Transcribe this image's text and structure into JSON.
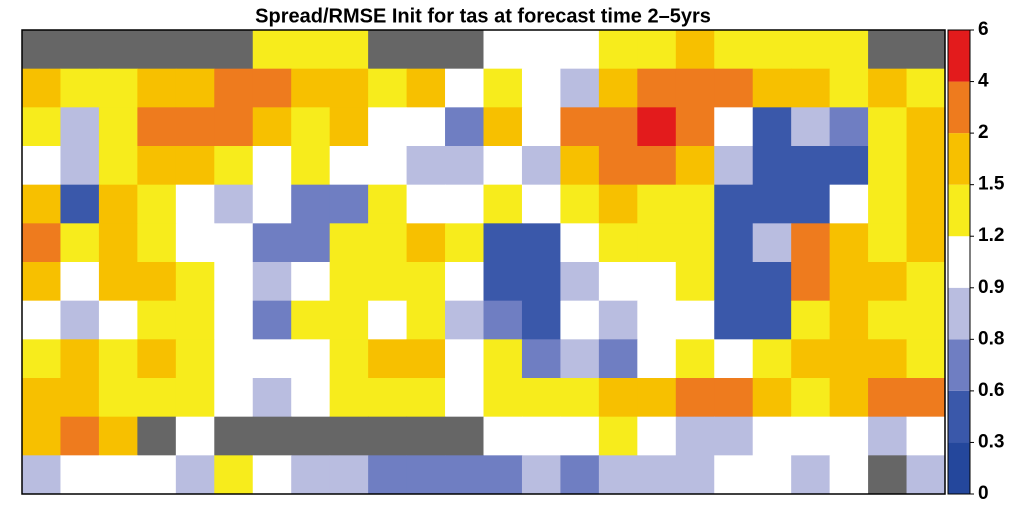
{
  "chart_data": {
    "type": "heatmap",
    "title": "Spread/RMSE Init for tas at forecast time 2–5yrs",
    "colorbar_ticks": [
      0,
      0.3,
      0.6,
      0.8,
      0.9,
      1.2,
      1.5,
      2,
      4,
      6
    ],
    "colors": [
      "#24479c",
      "#3a58aa",
      "#6f7ec2",
      "#b9bde0",
      "#ffffff",
      "#f7ec1c",
      "#f7c000",
      "#ee7b1e",
      "#e31b1c"
    ],
    "missing_color": "#666666",
    "values": [
      [
        null,
        null,
        null,
        null,
        null,
        null,
        1.3,
        1.2,
        1.3,
        null,
        null,
        null,
        1.0,
        1.0,
        1.0,
        1.3,
        1.3,
        1.5,
        1.3,
        1.3,
        1.2,
        1.3,
        null,
        null
      ],
      [
        1.5,
        1.3,
        1.3,
        1.7,
        1.7,
        2.5,
        2.5,
        1.7,
        1.7,
        1.3,
        1.7,
        1.0,
        1.2,
        1.0,
        0.85,
        1.7,
        2.5,
        2.5,
        2.5,
        1.7,
        1.7,
        1.3,
        1.5,
        1.3
      ],
      [
        1.3,
        0.85,
        1.3,
        2.5,
        2.5,
        2.5,
        1.7,
        1.3,
        1.7,
        1.0,
        1.0,
        0.7,
        1.7,
        1.0,
        2.5,
        3,
        4.5,
        2.5,
        1.0,
        0.5,
        0.85,
        0.7,
        1.3,
        1.5
      ],
      [
        1.0,
        0.85,
        1.3,
        1.7,
        1.7,
        1.3,
        1.0,
        1.3,
        1.0,
        1.0,
        0.85,
        0.85,
        1.0,
        0.85,
        1.7,
        2.5,
        2.5,
        1.7,
        0.85,
        0.5,
        0.5,
        0.5,
        1.3,
        1.5
      ],
      [
        1.7,
        0.5,
        1.5,
        1.3,
        1.0,
        0.85,
        1.0,
        0.7,
        0.7,
        1.3,
        1.0,
        1.0,
        1.3,
        1.0,
        1.3,
        1.7,
        1.3,
        1.3,
        0.5,
        0.5,
        0.5,
        1.0,
        1.3,
        1.7
      ],
      [
        2.5,
        1.3,
        1.7,
        1.3,
        1.0,
        1.0,
        0.7,
        0.7,
        1.3,
        1.3,
        1.7,
        1.3,
        0.5,
        0.5,
        1.0,
        1.3,
        1.3,
        1.3,
        0.5,
        0.85,
        2.5,
        1.7,
        1.3,
        1.7
      ],
      [
        1.7,
        1.0,
        1.5,
        1.7,
        1.3,
        1.0,
        0.85,
        1.0,
        1.3,
        1.3,
        1.3,
        1.0,
        0.5,
        0.5,
        0.85,
        1.0,
        1.0,
        1.3,
        0.5,
        0.5,
        2.5,
        1.7,
        1.7,
        1.3
      ],
      [
        1.0,
        0.85,
        1.0,
        1.3,
        1.3,
        1.0,
        0.7,
        1.3,
        1.3,
        1.0,
        1.3,
        0.85,
        0.7,
        0.5,
        1.0,
        0.85,
        1.0,
        1.0,
        0.5,
        0.5,
        1.3,
        1.7,
        1.3,
        1.3
      ],
      [
        1.3,
        1.7,
        1.3,
        1.7,
        1.3,
        1.0,
        1.0,
        1.0,
        1.3,
        1.7,
        1.5,
        1.0,
        1.3,
        0.7,
        0.85,
        0.7,
        1.0,
        1.3,
        1.0,
        1.3,
        1.7,
        1.5,
        1.7,
        1.3
      ],
      [
        1.7,
        1.7,
        1.3,
        1.3,
        1.3,
        1.0,
        0.85,
        1.0,
        1.3,
        1.3,
        1.3,
        1.0,
        1.3,
        1.3,
        1.3,
        1.7,
        1.7,
        2.5,
        2.5,
        1.7,
        1.3,
        1.7,
        2.5,
        2.5
      ],
      [
        1.5,
        2.5,
        1.7,
        null,
        1.0,
        null,
        null,
        null,
        null,
        null,
        null,
        null,
        1.0,
        1.0,
        1.0,
        1.3,
        1.0,
        0.85,
        0.85,
        1.0,
        1.0,
        1.0,
        0.85,
        1.0
      ],
      [
        0.85,
        1.0,
        1.0,
        1.0,
        0.85,
        1.3,
        1.0,
        0.85,
        0.85,
        0.7,
        0.7,
        0.7,
        0.7,
        0.85,
        0.7,
        0.85,
        0.85,
        0.85,
        1.0,
        1.0,
        0.85,
        1.0,
        null,
        0.85
      ]
    ]
  }
}
